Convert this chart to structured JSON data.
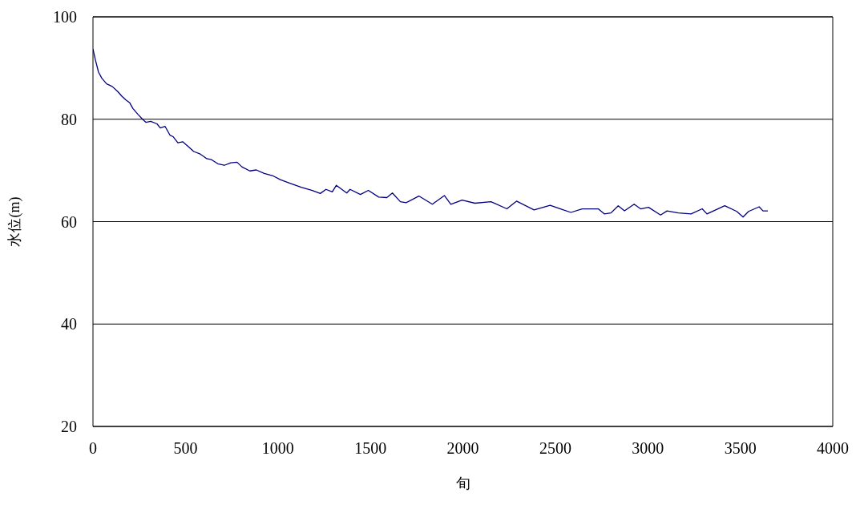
{
  "chart_data": {
    "type": "line",
    "xlabel": "旬",
    "ylabel": "水位(m)",
    "x": [
      0,
      13,
      30,
      48,
      74,
      104,
      134,
      156,
      177,
      199,
      216,
      242,
      268,
      286,
      312,
      346,
      364,
      390,
      416,
      433,
      459,
      485,
      511,
      545,
      580,
      615,
      641,
      675,
      710,
      745,
      779,
      805,
      848,
      883,
      926,
      970,
      1013,
      1065,
      1126,
      1186,
      1229,
      1260,
      1294,
      1316,
      1372,
      1390,
      1446,
      1489,
      1545,
      1589,
      1619,
      1662,
      1693,
      1762,
      1835,
      1900,
      1935,
      1996,
      2065,
      2152,
      2238,
      2290,
      2385,
      2472,
      2528,
      2584,
      2645,
      2732,
      2766,
      2801,
      2840,
      2874,
      2926,
      2961,
      3004,
      3069,
      3104,
      3165,
      3234,
      3294,
      3320,
      3416,
      3481,
      3515,
      3545,
      3602,
      3623,
      3649
    ],
    "series": [
      {
        "color": "#000080",
        "values": [
          93.7,
          91.6,
          89.2,
          88,
          86.9,
          86.4,
          85.4,
          84.5,
          83.8,
          83.2,
          82.1,
          81,
          80,
          79.4,
          79.6,
          79.1,
          78.3,
          78.6,
          76.9,
          76.6,
          75.4,
          75.6,
          74.8,
          73.7,
          73.2,
          72.3,
          72.1,
          71.3,
          71,
          71.5,
          71.6,
          70.7,
          69.9,
          70.1,
          69.4,
          69,
          68.2,
          67.5,
          66.7,
          66.1,
          65.5,
          66.3,
          65.8,
          67.1,
          65.6,
          66.3,
          65.3,
          66.1,
          64.8,
          64.7,
          65.6,
          63.9,
          63.7,
          65,
          63.4,
          65.1,
          63.4,
          64.2,
          63.6,
          63.9,
          62.5,
          64,
          62.3,
          63.2,
          62.5,
          61.8,
          62.5,
          62.5,
          61.5,
          61.7,
          63.1,
          62.1,
          63.4,
          62.5,
          62.8,
          61.3,
          62.1,
          61.7,
          61.5,
          62.5,
          61.5,
          63.1,
          62,
          60.9,
          62,
          62.9,
          62.1,
          62.1
        ]
      }
    ],
    "xlim": [
      0,
      4000
    ],
    "xticks": [
      0,
      500,
      1000,
      1500,
      2000,
      2500,
      3000,
      3500,
      4000
    ],
    "ylim": [
      20,
      100
    ],
    "yticks": [
      20,
      40,
      60,
      80,
      100
    ],
    "grid": "y",
    "marker": "none",
    "line_style": "solid",
    "legend": false
  }
}
